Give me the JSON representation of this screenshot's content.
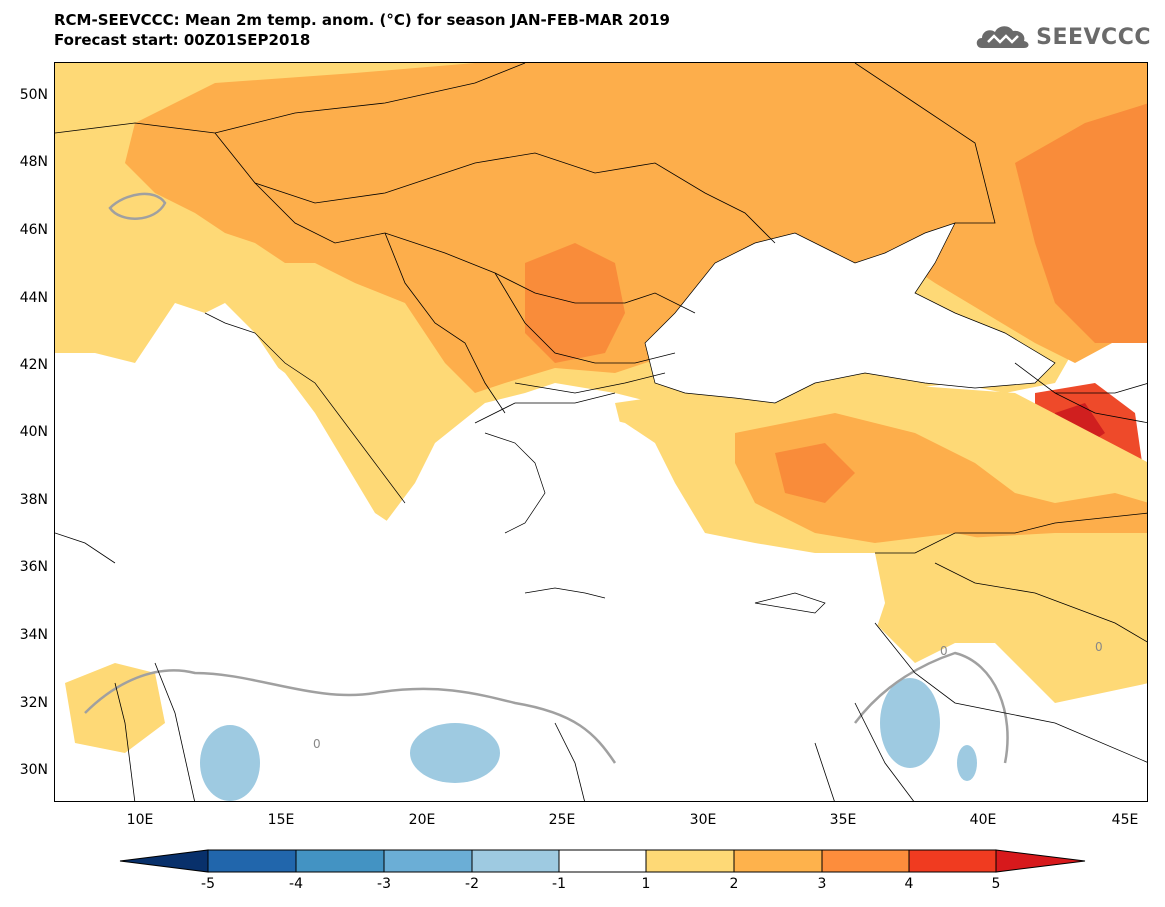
{
  "header": {
    "title": "RCM-SEEVCCC: Mean 2m temp. anom. (°C) for season JAN-FEB-MAR 2019",
    "subtitle": "Forecast start: 00Z01SEP2018"
  },
  "logo": {
    "text": "SEEVCCC",
    "icon": "cloud-logo-icon"
  },
  "map": {
    "lat_labels": [
      "50N",
      "48N",
      "46N",
      "44N",
      "42N",
      "40N",
      "38N",
      "36N",
      "34N",
      "32N",
      "30N"
    ],
    "lon_labels": [
      "10E",
      "15E",
      "20E",
      "25E",
      "30E",
      "35E",
      "40E",
      "45E"
    ],
    "contour_label": "0"
  },
  "colorbar": {
    "labels": [
      "-5",
      "-4",
      "-3",
      "-2",
      "-1",
      "1",
      "2",
      "3",
      "4",
      "5"
    ],
    "colors": [
      "#08306b",
      "#2166ac",
      "#4393c3",
      "#6baed6",
      "#9ecae1",
      "#ffffff",
      "#fed976",
      "#feb24c",
      "#fd8d3c",
      "#f03b20",
      "#d7191c"
    ],
    "low_color": "#08306b",
    "high_color": "#d7191c"
  },
  "colors": {
    "anom_1_2": "#fed976",
    "anom_2_3": "#fdae4b",
    "anom_3_4": "#f98c3a",
    "anom_4_5": "#ee4a2a",
    "anom_5plus": "#d01f1f",
    "anom_neg_1_2": "#9ecae1",
    "contour_zero": "#a0a0a0",
    "border": "#000000"
  }
}
